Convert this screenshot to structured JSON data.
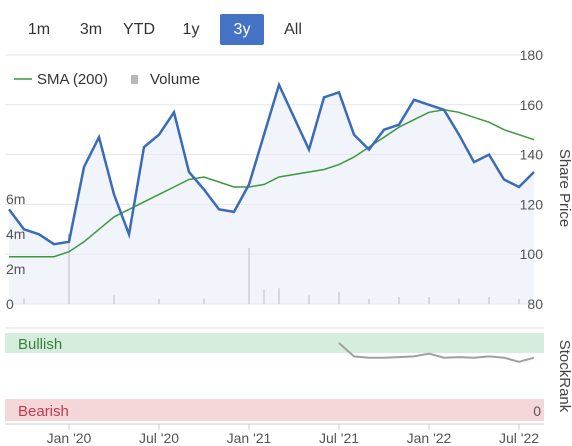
{
  "range_buttons": [
    {
      "label": "1m",
      "active": false
    },
    {
      "label": "3m",
      "active": false
    },
    {
      "label": "YTD",
      "active": false
    },
    {
      "label": "1y",
      "active": false
    },
    {
      "label": "3y",
      "active": true
    },
    {
      "label": "All",
      "active": false
    }
  ],
  "colors": {
    "price": "#3a6bb8",
    "sma": "#3a9a3a",
    "volume": "#b8b8b8",
    "active_button": "#4472c4",
    "bullish_bg": "#d4eddc",
    "bearish_bg": "#f6d7d9",
    "stockrank": "#a0a0a0",
    "bullish_text": "#3a7d3a",
    "bearish_text": "#c0394b"
  },
  "chart_data": [
    {
      "type": "line",
      "xlabel": "",
      "ylabel": "Share Price",
      "ylim": [
        80,
        180
      ],
      "y_ticks": [
        "80",
        "100",
        "120",
        "140",
        "160",
        "180"
      ],
      "volume_axis": {
        "ticks": [
          "0",
          "2m",
          "4m",
          "6m"
        ]
      },
      "x_ticks": [
        "Jan '20",
        "Jul '20",
        "Jan '21",
        "Jul '21",
        "Jan '22",
        "Jul '22"
      ],
      "legend": {
        "position": "top-left",
        "entries": [
          "SMA (200)",
          "Volume"
        ]
      },
      "grid": true,
      "series": [
        {
          "name": "SMA (200)",
          "role": "sma",
          "x": [
            "2019-09",
            "2019-10",
            "2019-11",
            "2019-12",
            "2020-01",
            "2020-02",
            "2020-03",
            "2020-04",
            "2020-05",
            "2020-06",
            "2020-07",
            "2020-08",
            "2020-09",
            "2020-10",
            "2020-11",
            "2020-12",
            "2021-01",
            "2021-02",
            "2021-03",
            "2021-04",
            "2021-05",
            "2021-06",
            "2021-07",
            "2021-08",
            "2021-09",
            "2021-10",
            "2021-11",
            "2021-12",
            "2022-01",
            "2022-02",
            "2022-03",
            "2022-04",
            "2022-05",
            "2022-06",
            "2022-07",
            "2022-08"
          ],
          "values": [
            99,
            99,
            99,
            99,
            101,
            105,
            110,
            115,
            118,
            121,
            124,
            127,
            130,
            131,
            129,
            127,
            127,
            128,
            131,
            132,
            133,
            134,
            136,
            139,
            143,
            147,
            151,
            154,
            157,
            158,
            157,
            155,
            153,
            150,
            148,
            146
          ]
        },
        {
          "name": "",
          "role": "price",
          "x": [
            "2019-09",
            "2019-10",
            "2019-11",
            "2019-12",
            "2020-01",
            "2020-02",
            "2020-03",
            "2020-04",
            "2020-05",
            "2020-06",
            "2020-07",
            "2020-08",
            "2020-09",
            "2020-10",
            "2020-11",
            "2020-12",
            "2021-01",
            "2021-02",
            "2021-03",
            "2021-04",
            "2021-05",
            "2021-06",
            "2021-07",
            "2021-08",
            "2021-09",
            "2021-10",
            "2021-11",
            "2021-12",
            "2022-01",
            "2022-02",
            "2022-03",
            "2022-04",
            "2022-05",
            "2022-06",
            "2022-07",
            "2022-08"
          ],
          "values": [
            118,
            110,
            108,
            104,
            105,
            135,
            147,
            124,
            108,
            143,
            148,
            157,
            133,
            126,
            118,
            117,
            128,
            148,
            168,
            155,
            142,
            163,
            165,
            148,
            142,
            150,
            152,
            162,
            160,
            158,
            148,
            137,
            140,
            130,
            127,
            133
          ]
        }
      ],
      "volume": {
        "x": [
          "2019-10",
          "2020-01",
          "2020-04",
          "2020-07",
          "2020-10",
          "2021-01",
          "2021-02",
          "2021-03",
          "2021-05",
          "2021-07",
          "2021-09",
          "2021-11",
          "2022-01",
          "2022-03",
          "2022-05",
          "2022-07"
        ],
        "values": [
          0.3,
          4.0,
          0.5,
          0.3,
          0.3,
          3.2,
          0.8,
          0.9,
          0.5,
          0.7,
          0.3,
          0.4,
          0.4,
          0.3,
          0.4,
          0.3
        ]
      }
    },
    {
      "type": "line",
      "ylabel": "StockRank",
      "bands": [
        "Bullish",
        "Bearish"
      ],
      "y_ticks": [
        "0"
      ],
      "series": [
        {
          "name": "",
          "x": [
            "2021-07",
            "2021-08",
            "2021-09",
            "2021-10",
            "2021-11",
            "2021-12",
            "2022-01",
            "2022-02",
            "2022-03",
            "2022-04",
            "2022-05",
            "2022-06",
            "2022-07",
            "2022-08"
          ],
          "values": [
            100,
            80,
            78,
            78,
            79,
            80,
            84,
            78,
            79,
            78,
            80,
            78,
            72,
            78
          ]
        }
      ]
    }
  ]
}
